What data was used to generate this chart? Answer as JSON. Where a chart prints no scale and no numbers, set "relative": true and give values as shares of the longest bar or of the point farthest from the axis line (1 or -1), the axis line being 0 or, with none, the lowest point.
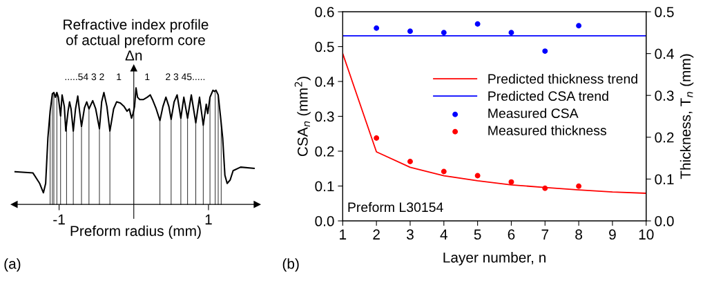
{
  "chart_data": [
    {
      "type": "line",
      "relative": true,
      "title": "Refractive index profile\nof actual preform core",
      "xlabel": "Preform radius (mm)",
      "ylabel": "Δn",
      "x": [
        -1.59,
        -1.35,
        -1.26,
        -1.21,
        -1.18,
        -1.15,
        -1.12,
        -1.09,
        -1.07,
        -1.05,
        -1.03,
        -1.01,
        -0.98,
        -0.96,
        -0.93,
        -0.91,
        -0.88,
        -0.86,
        -0.84,
        -0.81,
        -0.78,
        -0.75,
        -0.73,
        -0.7,
        -0.66,
        -0.63,
        -0.6,
        -0.55,
        -0.51,
        -0.46,
        -0.43,
        -0.4,
        -0.36,
        -0.32,
        -0.27,
        -0.23,
        -0.18,
        -0.13,
        -0.09,
        -0.06,
        -0.03,
        -0.01,
        0.01,
        0.03,
        0.05,
        0.08,
        0.13,
        0.18,
        0.22,
        0.25,
        0.3,
        0.35,
        0.39,
        0.43,
        0.47,
        0.5,
        0.54,
        0.58,
        0.63,
        0.67,
        0.72,
        0.77,
        0.83,
        0.88,
        0.93,
        0.97,
        0.99,
        1.02,
        1.06,
        1.08,
        1.1,
        1.13,
        1.16,
        1.19,
        1.22,
        1.25,
        1.29,
        1.33,
        1.43,
        1.61
      ],
      "series": [
        {
          "color": "#000000",
          "values": [
            0.28,
            0.27,
            0.18,
            0.1,
            0.18,
            0.57,
            0.8,
            0.95,
            0.96,
            0.92,
            0.96,
            0.92,
            0.76,
            0.94,
            0.84,
            0.63,
            0.8,
            0.88,
            0.82,
            0.63,
            0.82,
            0.93,
            0.82,
            0.67,
            0.83,
            0.88,
            0.82,
            0.89,
            0.82,
            0.65,
            0.88,
            0.96,
            0.84,
            0.63,
            0.82,
            0.88,
            0.87,
            0.84,
            0.8,
            0.82,
            0.74,
            0.78,
            0.84,
            1.0,
            0.92,
            0.9,
            0.9,
            0.92,
            0.94,
            0.9,
            0.82,
            0.72,
            0.84,
            0.92,
            0.84,
            0.73,
            0.88,
            0.94,
            0.74,
            0.92,
            0.74,
            0.94,
            0.7,
            0.92,
            0.68,
            0.86,
            0.78,
            0.92,
            0.98,
            0.97,
            0.98,
            0.94,
            0.76,
            0.57,
            0.25,
            0.18,
            0.21,
            0.29,
            0.32,
            0.31
          ]
        }
      ],
      "xlim": [
        -1.6,
        1.65
      ],
      "xticks": [
        -1,
        1
      ],
      "ref_lines": [
        {
          "axis": "x",
          "value": -1.12,
          "color": "#000000"
        },
        {
          "axis": "x",
          "value": -1.09,
          "color": "#000000"
        },
        {
          "axis": "x",
          "value": -1.07,
          "color": "#000000"
        },
        {
          "axis": "x",
          "value": -1.03,
          "color": "#000000"
        },
        {
          "axis": "x",
          "value": -0.98,
          "color": "#000000"
        },
        {
          "axis": "x",
          "value": -0.9,
          "color": "#000000"
        },
        {
          "axis": "x",
          "value": -0.81,
          "color": "#000000"
        },
        {
          "axis": "x",
          "value": -0.7,
          "color": "#000000"
        },
        {
          "axis": "x",
          "value": -0.6,
          "color": "#000000"
        },
        {
          "axis": "x",
          "value": -0.46,
          "color": "#000000"
        },
        {
          "axis": "x",
          "value": -0.32,
          "color": "#000000"
        },
        {
          "axis": "x",
          "value": 0.35,
          "color": "#000000"
        },
        {
          "axis": "x",
          "value": 0.5,
          "color": "#000000"
        },
        {
          "axis": "x",
          "value": 0.63,
          "color": "#000000"
        },
        {
          "axis": "x",
          "value": 0.72,
          "color": "#000000"
        },
        {
          "axis": "x",
          "value": 0.83,
          "color": "#000000"
        },
        {
          "axis": "x",
          "value": 0.93,
          "color": "#000000"
        },
        {
          "axis": "x",
          "value": 1.02,
          "color": "#000000"
        },
        {
          "axis": "x",
          "value": 1.09,
          "color": "#000000"
        },
        {
          "axis": "x",
          "value": 1.13,
          "color": "#000000"
        },
        {
          "axis": "x",
          "value": 1.17,
          "color": "#000000"
        }
      ],
      "annotations": [
        ".....54 3 2",
        "1",
        "1",
        "2 3 45.....",
        "(a)"
      ],
      "grid": false,
      "legend": false
    },
    {
      "type": "line",
      "xlabel": "Layer number, n",
      "ylabel": "CSA$_{n}$ (mm$^{2}$)",
      "y2label": "Thickness, T$_{n}$ (mm)",
      "series": [
        {
          "name": "Predicted thickness trend",
          "type": "line",
          "axis": "y2",
          "color": "#ff0000",
          "x": [
            1,
            2,
            3,
            4,
            5,
            6,
            7,
            8,
            9,
            10
          ],
          "values": [
            0.4,
            0.165,
            0.128,
            0.108,
            0.096,
            0.086,
            0.08,
            0.074,
            0.069,
            0.066
          ]
        },
        {
          "name": "Predicted CSA trend",
          "type": "line",
          "color": "#0000ff",
          "x": [
            1,
            10
          ],
          "values": [
            0.531,
            0.531
          ]
        },
        {
          "name": "Measured CSA",
          "type": "scatter",
          "marker": "circle",
          "color": "#0000ff",
          "x": [
            2,
            3,
            4,
            5,
            6,
            7,
            8
          ],
          "values": [
            0.553,
            0.544,
            0.54,
            0.565,
            0.54,
            0.487,
            0.56
          ]
        },
        {
          "name": "Measured thickness",
          "type": "scatter",
          "marker": "circle",
          "axis": "y2",
          "color": "#ff0000",
          "x": [
            2,
            3,
            4,
            5,
            6,
            7,
            8
          ],
          "values": [
            0.198,
            0.142,
            0.118,
            0.108,
            0.093,
            0.078,
            0.083
          ]
        }
      ],
      "xlim": [
        1,
        10
      ],
      "xticks": [
        1,
        2,
        3,
        4,
        5,
        6,
        7,
        8,
        9,
        10
      ],
      "ylim": [
        0,
        0.6
      ],
      "yticks": [
        {
          "value": 0,
          "label": "0.0"
        },
        0.1,
        0.2,
        0.3,
        0.4,
        0.5,
        0.6
      ],
      "y2lim": [
        0,
        0.5
      ],
      "y2ticks": [
        {
          "value": 0,
          "label": "0.0"
        },
        0.1,
        0.2,
        0.3,
        0.4,
        0.5
      ],
      "annotations": [
        "Preform L30154",
        "(b)"
      ],
      "grid": false,
      "legend": "right"
    }
  ]
}
